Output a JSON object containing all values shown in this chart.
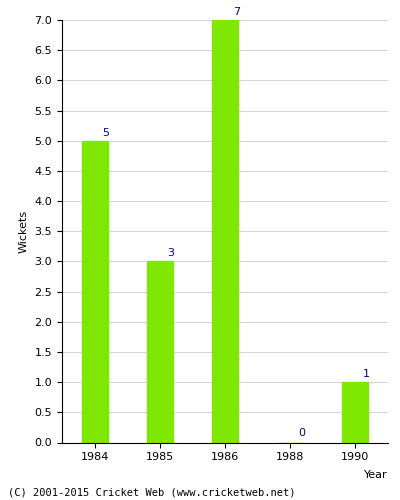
{
  "years": [
    "1984",
    "1985",
    "1986",
    "1988",
    "1990"
  ],
  "values": [
    5,
    3,
    7,
    0,
    1
  ],
  "bar_color": "#7FE800",
  "ylabel": "Wickets",
  "xlabel": "Year",
  "ylim": [
    0,
    7.0
  ],
  "yticks": [
    0.0,
    0.5,
    1.0,
    1.5,
    2.0,
    2.5,
    3.0,
    3.5,
    4.0,
    4.5,
    5.0,
    5.5,
    6.0,
    6.5,
    7.0
  ],
  "label_color": "#00008B",
  "label_fontsize": 8,
  "axis_fontsize": 8,
  "footer": "(C) 2001-2015 Cricket Web (www.cricketweb.net)",
  "footer_fontsize": 7.5,
  "background_color": "#ffffff",
  "grid_color": "#cccccc"
}
